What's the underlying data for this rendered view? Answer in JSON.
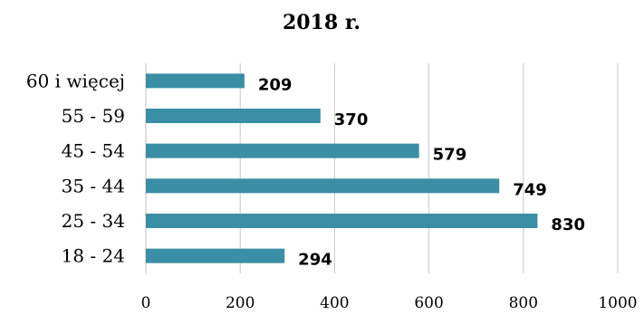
{
  "chart_data": {
    "type": "bar",
    "orientation": "horizontal",
    "title": "2018 r.",
    "categories": [
      "60 i więcej",
      "55 - 59",
      "45 - 54",
      "35 - 44",
      "25 - 34",
      "18 - 24"
    ],
    "values": [
      209,
      370,
      579,
      749,
      830,
      294
    ],
    "data_labels": [
      "209",
      "370",
      "579",
      "749",
      "830",
      "294"
    ],
    "xlim": [
      0,
      1000
    ],
    "xticks": [
      0,
      200,
      400,
      600,
      800,
      1000
    ],
    "xtick_labels": [
      "0",
      "200",
      "400",
      "600",
      "800",
      "1000"
    ],
    "grid": "vertical",
    "legend": "none",
    "bar_color": "#3a8ea5"
  }
}
